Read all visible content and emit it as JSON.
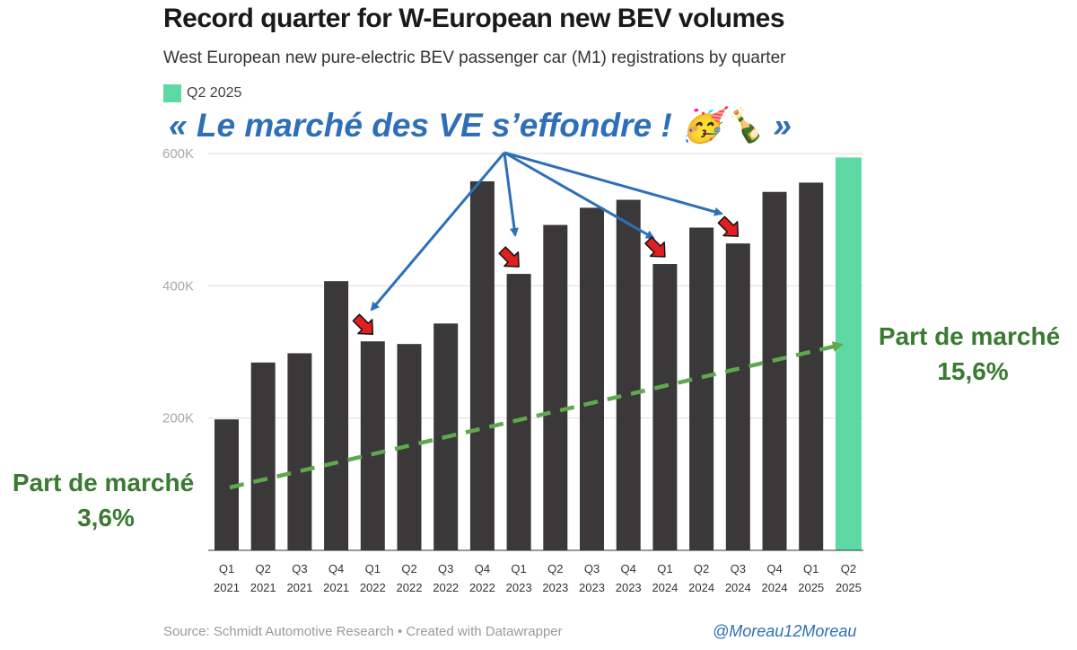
{
  "title": "Record quarter for W-European new BEV volumes",
  "subtitle": "West European new pure-electric BEV passenger car (M1) registrations by quarter",
  "legend": {
    "label": "Q2 2025",
    "color": "#5fd9a3"
  },
  "source": "Source: Schmidt Automotive Research • Created with Datawrapper",
  "handle": "@Moreau12Moreau",
  "annotation": {
    "headline": "« Le marché des VE s’effondre ! 🥳🍾 »",
    "headline_color": "#2e6fb8",
    "start_share_title": "Part de marché",
    "start_share_value": "3,6%",
    "end_share_title": "Part de marché",
    "end_share_value": "15,6%",
    "share_color": "#3a7a32",
    "arrow_color": "#2e6fb8",
    "marker_color": "#e02020",
    "marked_quarters": [
      "Q1 2022",
      "Q1 2023",
      "Q1 2024",
      "Q3 2024"
    ]
  },
  "chart_data": {
    "type": "bar",
    "categories": [
      "Q1 2021",
      "Q2 2021",
      "Q3 2021",
      "Q4 2021",
      "Q1 2022",
      "Q2 2022",
      "Q3 2022",
      "Q4 2022",
      "Q1 2023",
      "Q2 2023",
      "Q3 2023",
      "Q4 2023",
      "Q1 2024",
      "Q2 2024",
      "Q3 2024",
      "Q4 2024",
      "Q1 2025",
      "Q2 2025"
    ],
    "category_lines": [
      [
        "Q1",
        "2021"
      ],
      [
        "Q2",
        "2021"
      ],
      [
        "Q3",
        "2021"
      ],
      [
        "Q4",
        "2021"
      ],
      [
        "Q1",
        "2022"
      ],
      [
        "Q2",
        "2022"
      ],
      [
        "Q3",
        "2022"
      ],
      [
        "Q4",
        "2022"
      ],
      [
        "Q1",
        "2023"
      ],
      [
        "Q2",
        "2023"
      ],
      [
        "Q3",
        "2023"
      ],
      [
        "Q4",
        "2023"
      ],
      [
        "Q1",
        "2024"
      ],
      [
        "Q2",
        "2024"
      ],
      [
        "Q3",
        "2024"
      ],
      [
        "Q4",
        "2024"
      ],
      [
        "Q1",
        "2025"
      ],
      [
        "Q2",
        "2025"
      ]
    ],
    "values": [
      198000,
      284000,
      298000,
      407000,
      316000,
      312000,
      343000,
      558000,
      418000,
      492000,
      518000,
      530000,
      433000,
      488000,
      464000,
      542000,
      556000,
      594000
    ],
    "highlight_category": "Q2 2025",
    "bar_color": "#3a3839",
    "highlight_color": "#5fd9a3",
    "ylim": [
      0,
      600000
    ],
    "yticks": [
      200000,
      400000,
      600000
    ],
    "ytick_labels": [
      "200K",
      "400K",
      "600K"
    ],
    "grid": true,
    "legend_position": "top-left",
    "trend_line": {
      "from_share": 3.6,
      "to_share": 15.6,
      "color": "#5fa84f",
      "style": "dashed"
    }
  }
}
